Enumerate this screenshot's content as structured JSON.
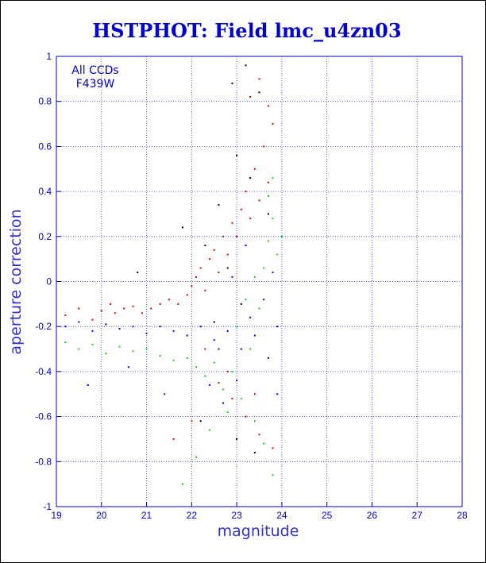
{
  "chart_data": {
    "type": "scatter",
    "title": "HSTPHOT: Field lmc_u4zn03",
    "xlabel": "magnitude",
    "ylabel": "aperture correction",
    "xlim": [
      19,
      28
    ],
    "ylim": [
      -1,
      1
    ],
    "x_ticks": [
      "19",
      "20",
      "21",
      "22",
      "23",
      "24",
      "25",
      "26",
      "27",
      "28"
    ],
    "y_ticks": [
      "-1",
      "-0.8",
      "-0.6",
      "-0.4",
      "-0.2",
      "0",
      "0.2",
      "0.4",
      "0.6",
      "0.8",
      "1"
    ],
    "grid": true,
    "annotation": [
      "All CCDs",
      "F439W"
    ],
    "colors": {
      "axis": "#0000cc",
      "grid": "#3333cc",
      "series_red": "#dd0000",
      "series_green": "#00dd00",
      "series_blue": "#0000dd",
      "series_black": "#000000"
    },
    "series": [
      {
        "color": "#dd0000",
        "points": [
          [
            19.2,
            -0.15
          ],
          [
            19.5,
            -0.12
          ],
          [
            19.8,
            -0.17
          ],
          [
            20.0,
            -0.13
          ],
          [
            20.2,
            -0.1
          ],
          [
            20.3,
            -0.14
          ],
          [
            20.5,
            -0.12
          ],
          [
            20.7,
            -0.11
          ],
          [
            20.9,
            -0.14
          ],
          [
            21.1,
            -0.12
          ],
          [
            21.3,
            -0.1
          ],
          [
            21.5,
            -0.08
          ],
          [
            21.7,
            -0.1
          ],
          [
            21.9,
            -0.06
          ],
          [
            22.0,
            -0.02
          ],
          [
            22.1,
            0.02
          ],
          [
            22.2,
            0.06
          ],
          [
            22.3,
            -0.04
          ],
          [
            22.4,
            0.1
          ],
          [
            22.5,
            0.14
          ],
          [
            22.6,
            0.04
          ],
          [
            22.7,
            0.2
          ],
          [
            22.8,
            0.12
          ],
          [
            22.9,
            0.26
          ],
          [
            23.0,
            0.2
          ],
          [
            23.1,
            0.32
          ],
          [
            23.2,
            0.4
          ],
          [
            23.3,
            0.28
          ],
          [
            23.4,
            0.5
          ],
          [
            23.5,
            0.36
          ],
          [
            23.6,
            0.6
          ],
          [
            23.7,
            0.44
          ],
          [
            23.8,
            0.7
          ],
          [
            23.3,
            0.82
          ],
          [
            23.5,
            0.9
          ],
          [
            23.7,
            0.78
          ],
          [
            22.3,
            -0.3
          ],
          [
            22.6,
            -0.45
          ],
          [
            22.9,
            -0.52
          ],
          [
            23.2,
            -0.6
          ],
          [
            23.5,
            -0.68
          ],
          [
            23.8,
            -0.74
          ],
          [
            21.6,
            -0.7
          ],
          [
            22.0,
            -0.62
          ],
          [
            22.8,
            -0.4
          ],
          [
            23.4,
            -0.5
          ]
        ]
      },
      {
        "color": "#00dd00",
        "points": [
          [
            19.2,
            -0.27
          ],
          [
            19.5,
            -0.3
          ],
          [
            19.8,
            -0.28
          ],
          [
            20.1,
            -0.32
          ],
          [
            20.4,
            -0.29
          ],
          [
            20.7,
            -0.31
          ],
          [
            21.0,
            -0.3
          ],
          [
            21.3,
            -0.33
          ],
          [
            21.6,
            -0.35
          ],
          [
            21.9,
            -0.34
          ],
          [
            22.1,
            -0.38
          ],
          [
            22.3,
            -0.42
          ],
          [
            22.5,
            -0.36
          ],
          [
            22.7,
            -0.48
          ],
          [
            22.9,
            -0.4
          ],
          [
            23.1,
            -0.52
          ],
          [
            23.3,
            -0.3
          ],
          [
            23.5,
            -0.12
          ],
          [
            23.6,
            0.06
          ],
          [
            23.7,
            0.18
          ],
          [
            23.8,
            0.28
          ],
          [
            23.9,
            0.12
          ],
          [
            23.7,
            0.38
          ],
          [
            23.8,
            0.46
          ],
          [
            24.0,
            0.2
          ],
          [
            23.4,
            -0.62
          ],
          [
            23.6,
            -0.72
          ],
          [
            23.8,
            -0.86
          ],
          [
            22.1,
            -0.78
          ],
          [
            22.4,
            -0.66
          ],
          [
            21.8,
            -0.9
          ],
          [
            22.8,
            -0.58
          ],
          [
            23.0,
            -0.2
          ],
          [
            23.2,
            -0.08
          ],
          [
            23.4,
            0.02
          ]
        ]
      },
      {
        "color": "#0000dd",
        "points": [
          [
            19.2,
            -0.2
          ],
          [
            19.5,
            -0.18
          ],
          [
            19.8,
            -0.22
          ],
          [
            20.1,
            -0.19
          ],
          [
            20.4,
            -0.21
          ],
          [
            20.7,
            -0.2
          ],
          [
            21.0,
            -0.23
          ],
          [
            21.3,
            -0.2
          ],
          [
            21.6,
            -0.22
          ],
          [
            21.9,
            -0.24
          ],
          [
            22.2,
            -0.2
          ],
          [
            22.5,
            -0.26
          ],
          [
            22.8,
            -0.22
          ],
          [
            23.1,
            -0.3
          ],
          [
            23.4,
            -0.24
          ],
          [
            23.7,
            -0.34
          ],
          [
            23.9,
            -0.2
          ],
          [
            22.4,
            -0.46
          ],
          [
            22.7,
            -0.54
          ],
          [
            23.0,
            -0.44
          ],
          [
            23.3,
            -0.16
          ],
          [
            23.6,
            -0.08
          ],
          [
            23.8,
            0.04
          ],
          [
            22.9,
            0.02
          ],
          [
            23.2,
            0.16
          ],
          [
            19.7,
            -0.46
          ],
          [
            20.6,
            -0.38
          ],
          [
            21.4,
            -0.5
          ],
          [
            22.6,
            -0.3
          ],
          [
            23.9,
            -0.5
          ]
        ]
      },
      {
        "color": "#000000",
        "points": [
          [
            22.9,
            0.88
          ],
          [
            23.2,
            0.96
          ],
          [
            23.5,
            0.84
          ],
          [
            23.0,
            0.56
          ],
          [
            23.3,
            0.46
          ],
          [
            22.6,
            0.34
          ],
          [
            22.8,
            0.06
          ],
          [
            23.1,
            -0.1
          ],
          [
            22.5,
            -0.18
          ],
          [
            23.4,
            -0.76
          ],
          [
            23.0,
            -0.7
          ],
          [
            20.8,
            0.04
          ],
          [
            21.8,
            0.24
          ],
          [
            22.2,
            -0.62
          ],
          [
            23.7,
            0.3
          ],
          [
            22.3,
            0.16
          ]
        ]
      }
    ]
  }
}
